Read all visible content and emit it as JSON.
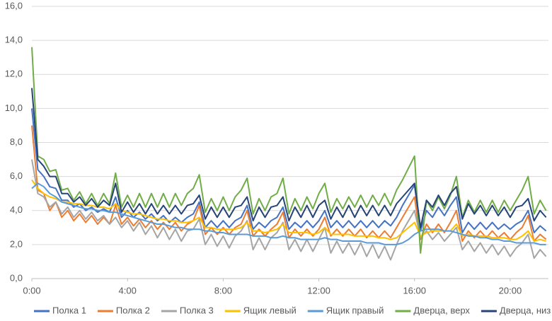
{
  "chart_data": {
    "type": "line",
    "x": [
      0,
      0.25,
      0.5,
      0.75,
      1,
      1.25,
      1.5,
      1.75,
      2,
      2.25,
      2.5,
      2.75,
      3,
      3.25,
      3.5,
      3.75,
      4,
      4.25,
      4.5,
      4.75,
      5,
      5.25,
      5.5,
      5.75,
      6,
      6.25,
      6.5,
      6.75,
      7,
      7.25,
      7.5,
      7.75,
      8,
      8.25,
      8.5,
      8.75,
      9,
      9.25,
      9.5,
      9.75,
      10,
      10.25,
      10.5,
      10.75,
      11,
      11.25,
      11.5,
      11.75,
      12,
      12.25,
      12.5,
      12.75,
      13,
      13.25,
      13.5,
      13.75,
      14,
      14.25,
      14.5,
      14.75,
      15,
      15.25,
      15.5,
      15.75,
      16,
      16.25,
      16.5,
      16.75,
      17,
      17.25,
      17.5,
      17.75,
      18,
      18.25,
      18.5,
      18.75,
      19,
      19.25,
      19.5,
      19.75,
      20,
      20.25,
      20.5,
      20.75,
      21,
      21.25,
      21.5
    ],
    "series": [
      {
        "name": "Полка 1",
        "color": "#4472c4",
        "values": [
          10.0,
          6.4,
          6.0,
          5.4,
          5.3,
          4.6,
          4.6,
          4.2,
          4.4,
          4.0,
          4.2,
          3.9,
          4.1,
          3.9,
          4.8,
          3.6,
          4.0,
          3.6,
          3.9,
          3.5,
          3.8,
          3.4,
          3.7,
          3.3,
          3.6,
          3.3,
          3.6,
          3.8,
          4.5,
          3.0,
          3.4,
          3.0,
          3.4,
          3.0,
          3.4,
          3.6,
          4.3,
          2.9,
          3.3,
          3.0,
          3.4,
          3.6,
          4.2,
          2.9,
          3.3,
          3.0,
          3.4,
          3.0,
          3.4,
          4.0,
          3.0,
          3.4,
          3.0,
          3.4,
          3.0,
          3.4,
          3.0,
          3.4,
          3.0,
          3.4,
          3.1,
          3.6,
          4.3,
          4.9,
          5.5,
          2.8,
          4.0,
          3.6,
          4.2,
          3.7,
          4.3,
          4.8,
          2.7,
          3.3,
          2.9,
          3.3,
          2.9,
          3.3,
          2.9,
          3.2,
          2.9,
          3.2,
          3.4,
          4.0,
          2.7,
          3.1,
          2.8
        ]
      },
      {
        "name": "Полка 2",
        "color": "#ed7d31",
        "values": [
          9.0,
          5.2,
          5.0,
          4.0,
          4.5,
          3.6,
          4.0,
          3.4,
          3.8,
          3.3,
          3.7,
          3.2,
          3.6,
          3.2,
          4.3,
          3.2,
          3.6,
          3.1,
          3.5,
          3.0,
          3.4,
          2.9,
          3.3,
          2.9,
          3.3,
          2.8,
          3.2,
          3.4,
          4.3,
          2.6,
          3.0,
          2.6,
          3.0,
          2.6,
          3.0,
          3.2,
          4.0,
          2.5,
          2.9,
          2.5,
          2.9,
          3.2,
          3.9,
          2.4,
          2.9,
          2.5,
          2.9,
          2.5,
          2.9,
          3.6,
          2.5,
          2.9,
          2.5,
          2.9,
          2.5,
          2.9,
          2.4,
          2.8,
          2.4,
          2.8,
          2.4,
          3.0,
          3.6,
          4.2,
          4.8,
          2.3,
          3.2,
          2.7,
          3.2,
          2.7,
          3.3,
          4.0,
          2.2,
          2.8,
          2.4,
          2.8,
          2.4,
          2.8,
          2.4,
          2.7,
          2.3,
          2.7,
          3.0,
          3.7,
          2.2,
          2.6,
          2.3
        ]
      },
      {
        "name": "Полка 3",
        "color": "#a5a5a5",
        "values": [
          7.0,
          5.0,
          4.8,
          4.2,
          4.5,
          3.8,
          4.2,
          3.6,
          4.0,
          3.5,
          3.9,
          3.4,
          3.7,
          3.2,
          3.6,
          3.0,
          3.4,
          2.8,
          3.3,
          2.6,
          3.1,
          2.4,
          3.0,
          2.3,
          2.9,
          2.2,
          2.8,
          2.9,
          3.5,
          2.0,
          2.6,
          1.9,
          2.5,
          1.8,
          2.5,
          2.8,
          3.4,
          1.7,
          2.4,
          1.7,
          2.4,
          2.7,
          3.3,
          1.7,
          2.3,
          1.6,
          2.3,
          1.6,
          2.3,
          3.0,
          1.5,
          2.2,
          1.5,
          2.1,
          1.4,
          2.1,
          1.3,
          2.0,
          1.2,
          1.9,
          1.1,
          2.0,
          2.8,
          3.4,
          4.0,
          2.4,
          2.8,
          2.3,
          2.7,
          2.2,
          2.6,
          3.0,
          1.7,
          2.2,
          1.6,
          2.1,
          1.5,
          2.0,
          1.4,
          1.9,
          1.3,
          1.8,
          2.1,
          2.6,
          1.2,
          1.7,
          1.3
        ]
      },
      {
        "name": "Ящик левый",
        "color": "#ffc000",
        "values": [
          5.8,
          5.3,
          5.0,
          4.8,
          4.7,
          4.5,
          4.5,
          4.4,
          4.4,
          4.3,
          4.3,
          4.2,
          4.2,
          4.1,
          4.4,
          4.0,
          3.9,
          3.8,
          3.8,
          3.7,
          3.6,
          3.5,
          3.5,
          3.4,
          3.4,
          3.3,
          3.3,
          3.4,
          3.6,
          3.0,
          3.0,
          2.9,
          2.9,
          2.9,
          2.9,
          3.0,
          3.3,
          2.8,
          2.8,
          2.7,
          2.8,
          2.9,
          3.2,
          2.7,
          2.7,
          2.7,
          2.7,
          2.6,
          2.7,
          3.0,
          2.6,
          2.6,
          2.6,
          2.6,
          2.5,
          2.5,
          2.5,
          2.5,
          2.4,
          2.4,
          2.3,
          2.4,
          2.7,
          3.0,
          3.3,
          2.5,
          2.7,
          2.8,
          2.8,
          2.8,
          2.8,
          3.2,
          2.5,
          2.6,
          2.5,
          2.5,
          2.5,
          2.4,
          2.4,
          2.4,
          2.3,
          2.3,
          2.5,
          2.8,
          2.2,
          2.3,
          2.2
        ]
      },
      {
        "name": "Ящик правый",
        "color": "#5b9bd5",
        "values": [
          5.3,
          5.6,
          5.4,
          5.0,
          4.8,
          4.5,
          4.4,
          4.3,
          4.2,
          4.1,
          4.1,
          4.0,
          4.0,
          3.9,
          3.9,
          3.8,
          3.7,
          3.6,
          3.5,
          3.4,
          3.3,
          3.2,
          3.2,
          3.1,
          3.0,
          3.0,
          2.9,
          2.9,
          2.9,
          2.8,
          2.8,
          2.7,
          2.7,
          2.6,
          2.6,
          2.6,
          2.6,
          2.5,
          2.5,
          2.5,
          2.4,
          2.4,
          2.5,
          2.4,
          2.4,
          2.3,
          2.3,
          2.3,
          2.3,
          2.4,
          2.3,
          2.3,
          2.2,
          2.2,
          2.2,
          2.2,
          2.1,
          2.1,
          2.1,
          2.0,
          2.0,
          2.0,
          2.1,
          2.3,
          2.6,
          2.8,
          2.9,
          2.9,
          2.9,
          2.8,
          2.8,
          2.7,
          2.6,
          2.5,
          2.5,
          2.4,
          2.4,
          2.3,
          2.3,
          2.2,
          2.2,
          2.1,
          2.1,
          2.1,
          2.1,
          2.0,
          2.0
        ]
      },
      {
        "name": "Дверца, верх",
        "color": "#70ad47",
        "values": [
          13.6,
          7.2,
          7.0,
          6.3,
          6.4,
          5.2,
          5.3,
          4.6,
          5.1,
          4.4,
          5.0,
          4.3,
          5.0,
          4.4,
          6.2,
          4.2,
          4.9,
          4.2,
          5.0,
          4.2,
          5.0,
          4.2,
          5.0,
          4.2,
          5.0,
          4.3,
          5.0,
          5.3,
          6.1,
          3.9,
          4.7,
          4.0,
          4.8,
          4.0,
          4.8,
          5.2,
          5.9,
          3.8,
          4.7,
          4.0,
          4.8,
          5.0,
          5.9,
          3.8,
          4.7,
          4.0,
          4.8,
          4.1,
          5.0,
          5.6,
          3.9,
          4.7,
          4.1,
          4.8,
          4.2,
          4.9,
          4.2,
          4.9,
          4.3,
          5.0,
          4.3,
          5.2,
          5.8,
          6.5,
          7.2,
          1.5,
          4.6,
          4.0,
          4.8,
          4.1,
          4.9,
          6.0,
          3.6,
          4.6,
          3.9,
          4.6,
          3.9,
          4.6,
          3.9,
          4.6,
          4.0,
          4.6,
          5.2,
          6.0,
          3.8,
          4.6,
          4.0
        ]
      },
      {
        "name": "Дверца, низ",
        "color": "#264478",
        "values": [
          11.2,
          7.0,
          6.6,
          6.0,
          6.0,
          5.0,
          5.0,
          4.5,
          4.8,
          4.3,
          4.7,
          4.2,
          4.6,
          4.3,
          5.6,
          3.9,
          4.5,
          3.9,
          4.4,
          3.8,
          4.4,
          3.8,
          4.3,
          3.8,
          4.3,
          3.8,
          4.3,
          4.4,
          4.9,
          3.5,
          4.2,
          3.6,
          4.2,
          3.6,
          4.2,
          4.3,
          4.8,
          3.4,
          4.2,
          3.6,
          4.2,
          4.3,
          4.8,
          3.4,
          4.2,
          3.6,
          4.3,
          3.6,
          4.3,
          4.6,
          3.5,
          4.2,
          3.6,
          4.3,
          3.6,
          4.3,
          3.7,
          4.3,
          3.7,
          4.3,
          3.7,
          4.4,
          4.8,
          5.2,
          5.6,
          3.0,
          4.6,
          4.2,
          4.9,
          4.3,
          5.0,
          5.4,
          3.5,
          4.4,
          3.8,
          4.3,
          3.7,
          4.3,
          3.7,
          4.2,
          3.6,
          4.2,
          4.3,
          4.7,
          3.4,
          4.0,
          3.6
        ]
      }
    ],
    "xlim": [
      0,
      21.6
    ],
    "xticks": [
      {
        "value": 0,
        "label": "0:00"
      },
      {
        "value": 4,
        "label": "4:00"
      },
      {
        "value": 8,
        "label": "8:00"
      },
      {
        "value": 12,
        "label": "12:00"
      },
      {
        "value": 16,
        "label": "16:00"
      },
      {
        "value": 20,
        "label": "20:00"
      }
    ],
    "ylim": [
      0,
      16
    ],
    "yticks": [
      {
        "value": 0,
        "label": "0,0"
      },
      {
        "value": 2,
        "label": "2,0"
      },
      {
        "value": 4,
        "label": "4,0"
      },
      {
        "value": 6,
        "label": "6,0"
      },
      {
        "value": 8,
        "label": "8,0"
      },
      {
        "value": 10,
        "label": "10,0"
      },
      {
        "value": 12,
        "label": "12,0"
      },
      {
        "value": 14,
        "label": "14,0"
      },
      {
        "value": 16,
        "label": "16,0"
      }
    ],
    "grid": true
  }
}
